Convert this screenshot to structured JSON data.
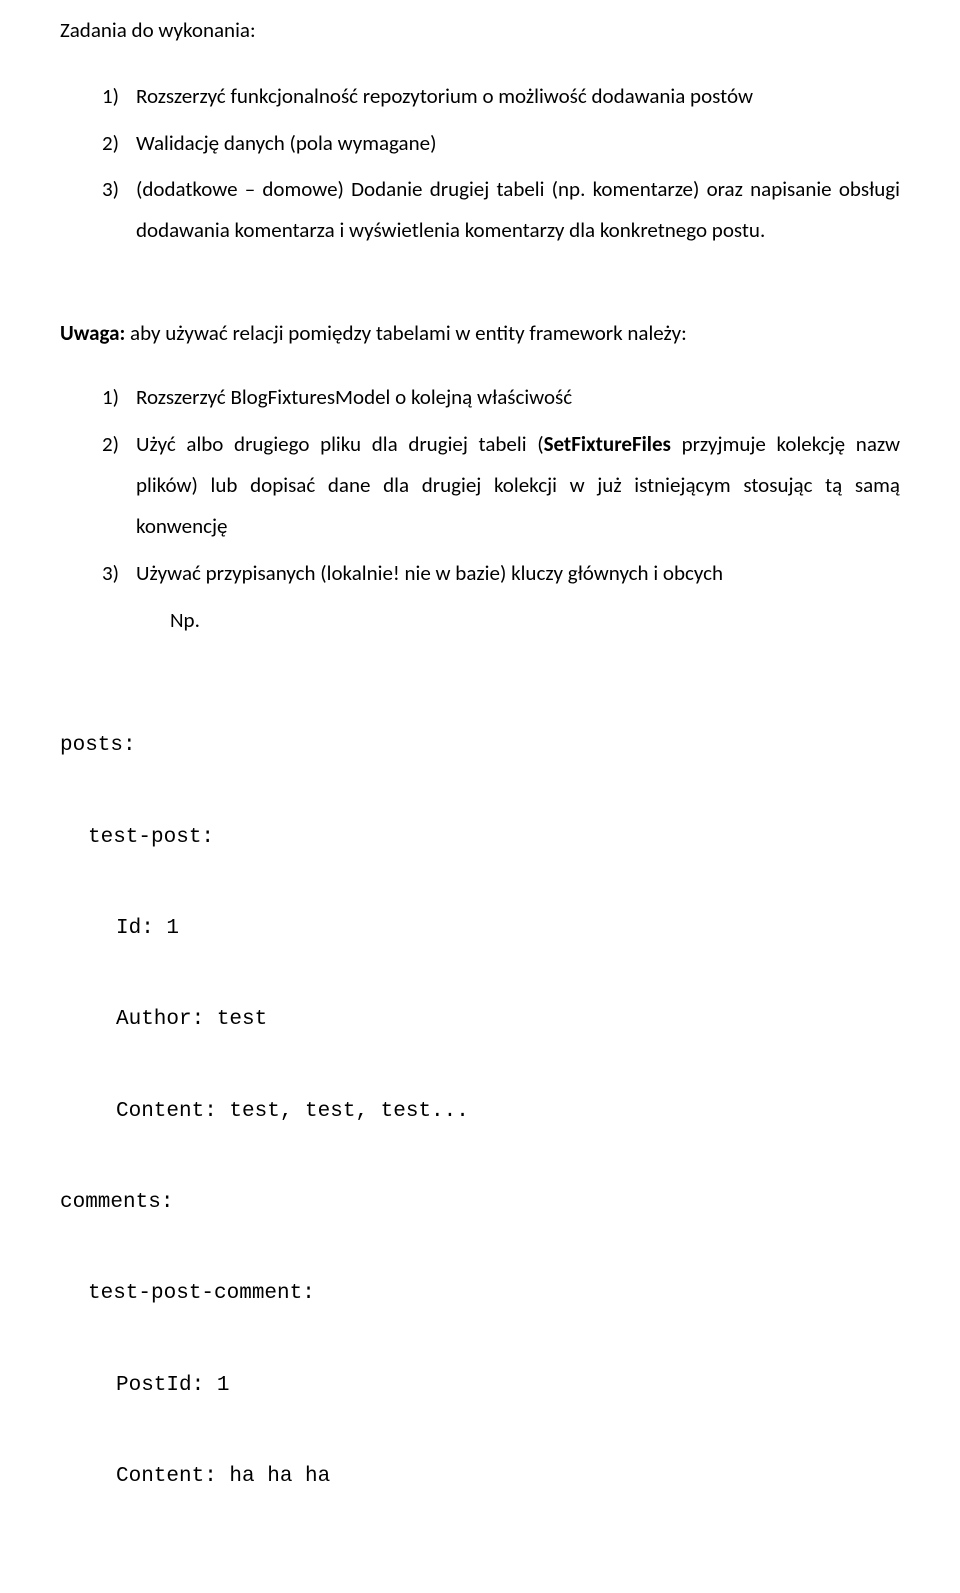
{
  "heading": "Zadania do wykonania:",
  "tasks": [
    {
      "num": "1)",
      "text": "Rozszerzyć funkcjonalność repozytorium o możliwość dodawania postów"
    },
    {
      "num": "2)",
      "text": "Walidację danych (pola wymagane)"
    },
    {
      "num": "3)",
      "text": "(dodatkowe – domowe) Dodanie drugiej tabeli (np. komentarze) oraz napisanie obsługi dodawania komentarza i wyświetlenia komentarzy dla konkretnego postu."
    }
  ],
  "uwaga_bold": "Uwaga:",
  "uwaga_rest": " aby używać relacji pomiędzy tabelami w entity framework należy:",
  "notes": [
    {
      "num": "1)",
      "text_plain": "Rozszerzyć BlogFixturesModel o kolejną właściwość"
    },
    {
      "num": "2)",
      "text_before": "Użyć albo drugiego pliku dla drugiej tabeli (",
      "text_bold": "SetFixtureFiles",
      "text_after": " przyjmuje kolekcję nazw plików) lub dopisać dane dla drugiej kolekcji w już istniejącym stosując tą samą konwencję"
    },
    {
      "num": "3)",
      "text_plain": "Używać przypisanych (lokalnie! nie w bazie) kluczy głównych i obcych",
      "np": "Np."
    }
  ],
  "code": [
    {
      "indent": "l0",
      "text": "posts:"
    },
    {
      "indent": "l1",
      "text": "test-post:"
    },
    {
      "indent": "l2",
      "text": "Id: 1"
    },
    {
      "indent": "l2",
      "text": "Author: test"
    },
    {
      "indent": "l2",
      "text": "Content: test, test, test..."
    },
    {
      "indent": "l0",
      "text": "comments:"
    },
    {
      "indent": "l1",
      "text": "test-post-comment:"
    },
    {
      "indent": "l2",
      "text": "PostId: 1"
    },
    {
      "indent": "l2",
      "text": "Content: ha ha ha"
    }
  ]
}
